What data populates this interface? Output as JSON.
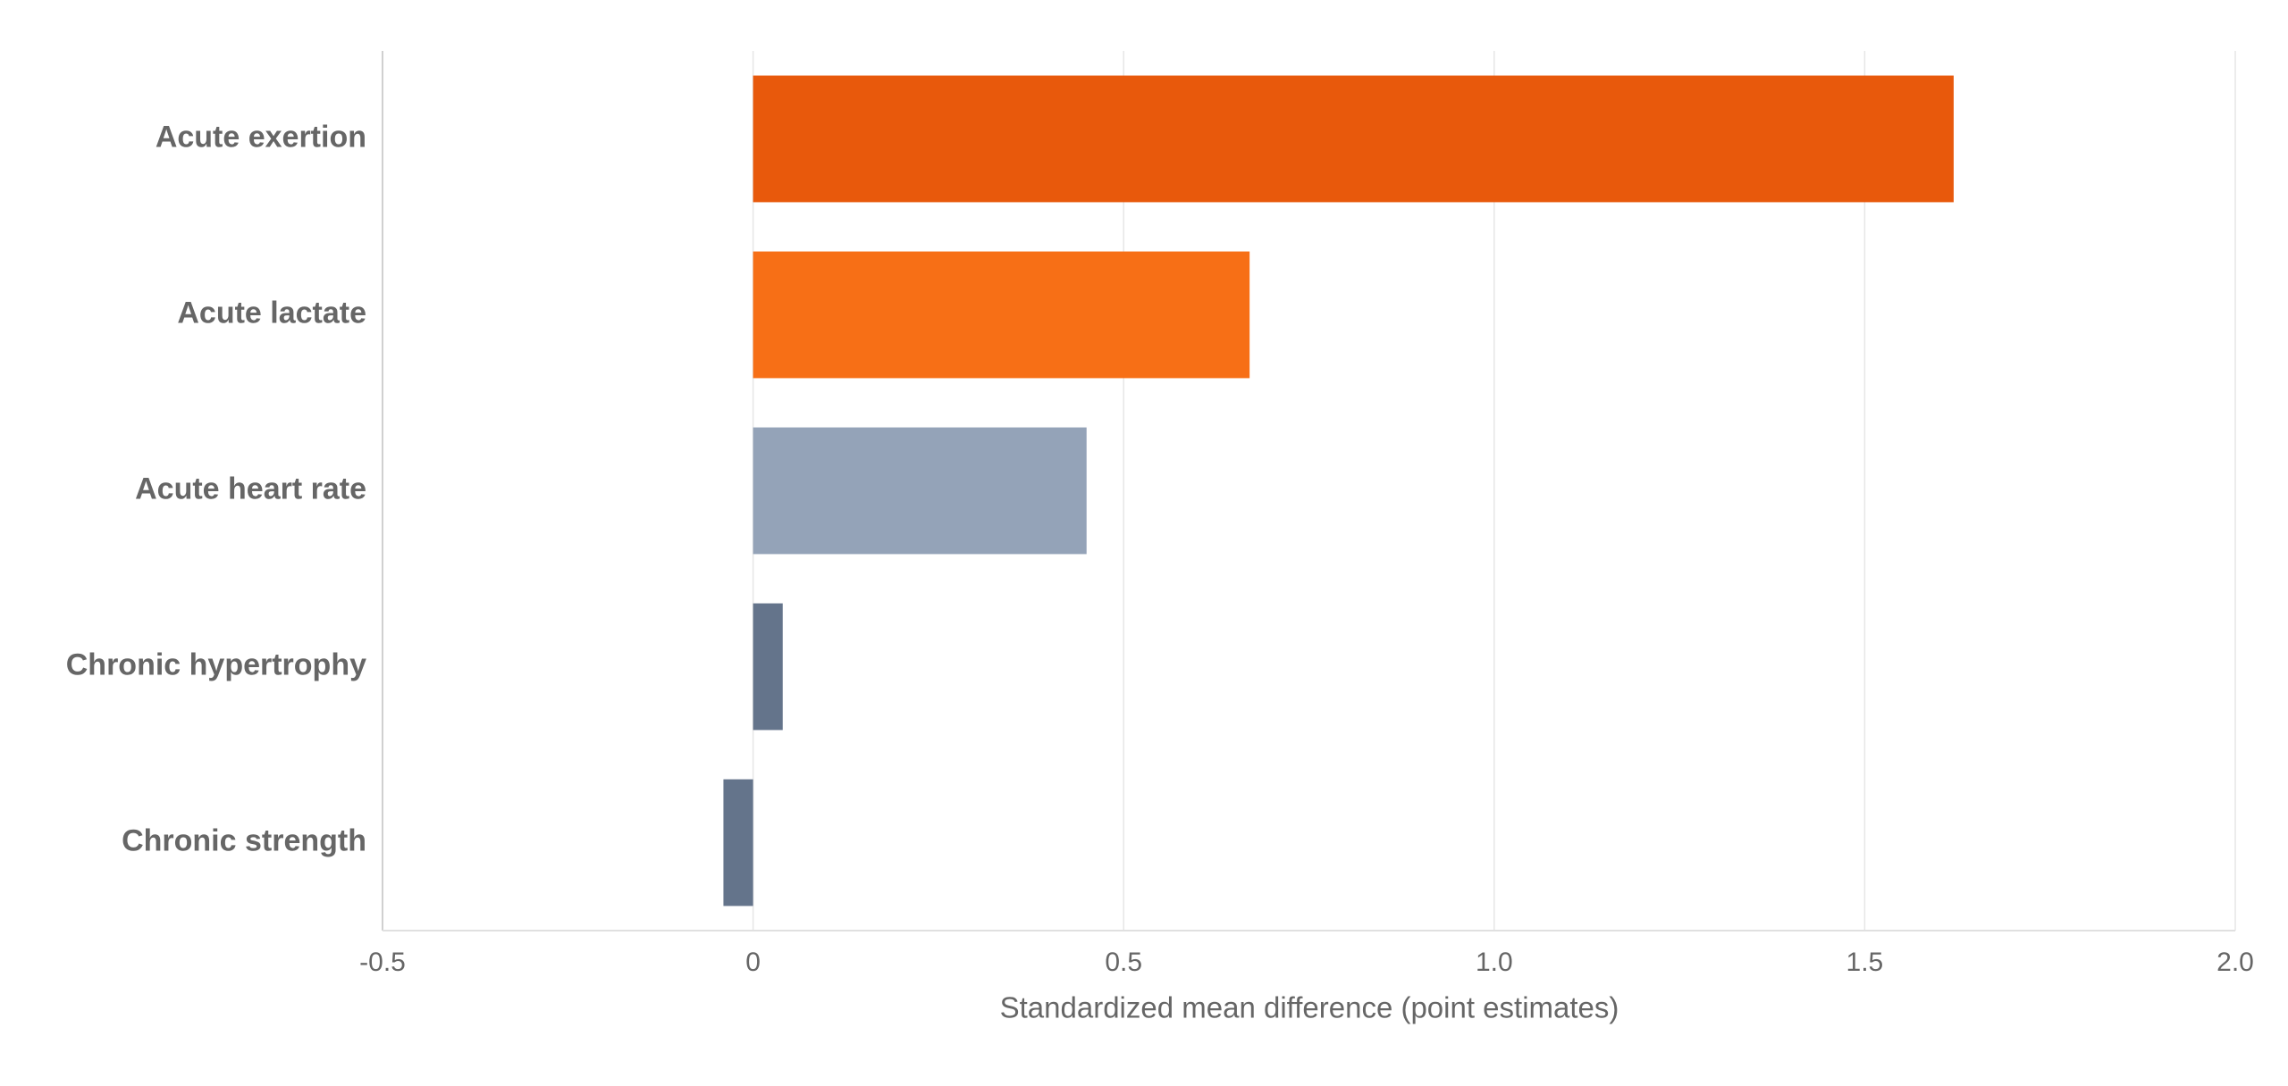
{
  "chart_data": {
    "type": "hbar",
    "categories": [
      "Acute exertion",
      "Acute lactate",
      "Acute heart rate",
      "Chronic hypertrophy",
      "Chronic strength"
    ],
    "values": [
      1.62,
      0.67,
      0.45,
      0.04,
      -0.04
    ],
    "colors": [
      "#e8590c",
      "#f76f16",
      "#94a3b8",
      "#64748b",
      "#64748b"
    ],
    "xlim": [
      -0.5,
      2
    ],
    "xticks": [
      -0.5,
      0,
      0.5,
      {
        "value": 1,
        "label": "1.0"
      },
      1.5,
      {
        "value": 2,
        "label": "2.0"
      }
    ],
    "xlabel": "Standardized mean difference (point estimates)",
    "grid": true
  }
}
